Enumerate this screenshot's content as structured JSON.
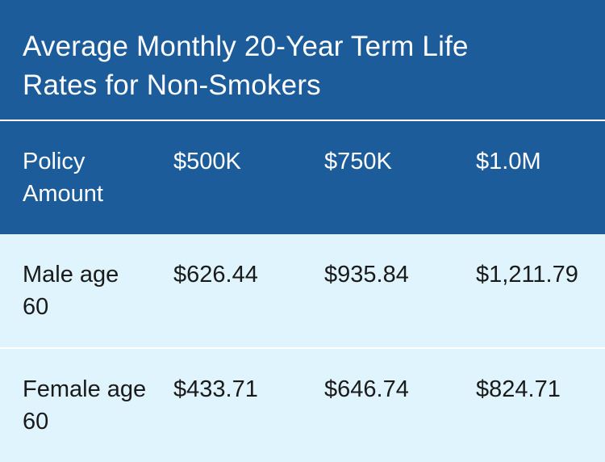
{
  "chart_data": {
    "type": "table",
    "title": "Average Monthly 20-Year Term Life Rates for Non-Smokers",
    "columns": [
      "Policy Amount",
      "$500K",
      "$750K",
      "$1.0M"
    ],
    "rows": [
      [
        "Male age 60",
        "$626.44",
        "$935.84",
        "$1,211.79"
      ],
      [
        "Female age 60",
        "$433.71",
        "$646.74",
        "$824.71"
      ]
    ]
  },
  "colors": {
    "header_bg": "#1c5c9b",
    "row_bg": "#dff4fc",
    "header_text": "#ffffff",
    "body_text": "#1a1a1a"
  }
}
